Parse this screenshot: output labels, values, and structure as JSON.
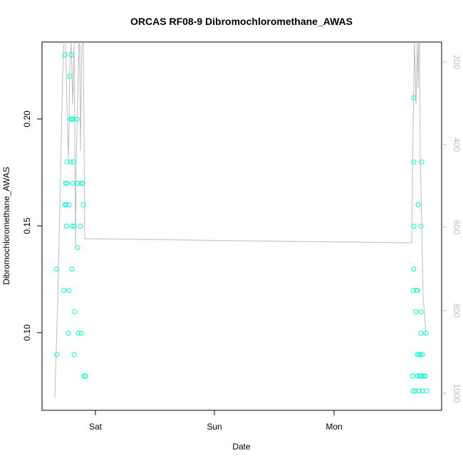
{
  "chart_data": {
    "type": "scatter",
    "title": "ORCAS RF08-9 Dibromochloromethane_AWAS",
    "xlabel": "Date",
    "ylabel": "Dibromochloromethane_AWAS",
    "x_ticks": [
      "Sat",
      "Sun",
      "Mon"
    ],
    "y_ticks": [
      "0.10",
      "0.15",
      "0.20"
    ],
    "ylim": [
      0.064,
      0.236
    ],
    "y2_ticks": [
      "200",
      "400",
      "600",
      "800",
      "1000"
    ],
    "y2lim": [
      1030,
      150
    ],
    "y2_reversed": true,
    "point_color": "#00ffd0",
    "line_color": "#bdbdbd",
    "points": [
      {
        "x": 79,
        "y": 0.13
      },
      {
        "x": 80,
        "y": 0.09
      },
      {
        "x": 91,
        "y": 0.23
      },
      {
        "x": 90,
        "y": 0.12
      },
      {
        "x": 92,
        "y": 0.17
      },
      {
        "x": 94,
        "y": 0.17
      },
      {
        "x": 91,
        "y": 0.16
      },
      {
        "x": 93,
        "y": 0.16
      },
      {
        "x": 93,
        "y": 0.15
      },
      {
        "x": 94,
        "y": 0.18
      },
      {
        "x": 96,
        "y": 0.1
      },
      {
        "x": 97,
        "y": 0.12
      },
      {
        "x": 97,
        "y": 0.16
      },
      {
        "x": 98,
        "y": 0.22
      },
      {
        "x": 99,
        "y": 0.18
      },
      {
        "x": 99,
        "y": 0.2
      },
      {
        "x": 100,
        "y": 0.23
      },
      {
        "x": 101,
        "y": 0.2
      },
      {
        "x": 101,
        "y": 0.15
      },
      {
        "x": 101,
        "y": 0.13
      },
      {
        "x": 102,
        "y": 0.17
      },
      {
        "x": 103,
        "y": 0.2
      },
      {
        "x": 103,
        "y": 0.18
      },
      {
        "x": 104,
        "y": 0.15
      },
      {
        "x": 104,
        "y": 0.09
      },
      {
        "x": 105,
        "y": 0.11
      },
      {
        "x": 108,
        "y": 0.2
      },
      {
        "x": 109,
        "y": 0.17
      },
      {
        "x": 109,
        "y": 0.14
      },
      {
        "x": 110,
        "y": 0.1
      },
      {
        "x": 113,
        "y": 0.15
      },
      {
        "x": 114,
        "y": 0.1
      },
      {
        "x": 114,
        "y": 0.17
      },
      {
        "x": 116,
        "y": 0.17
      },
      {
        "x": 117,
        "y": 0.16
      },
      {
        "x": 118,
        "y": 0.08
      },
      {
        "x": 120,
        "y": 0.08
      },
      {
        "x": 579,
        "y": 0.08
      },
      {
        "x": 580,
        "y": 0.073
      },
      {
        "x": 580,
        "y": 0.12
      },
      {
        "x": 581,
        "y": 0.21
      },
      {
        "x": 581,
        "y": 0.18
      },
      {
        "x": 581,
        "y": 0.15
      },
      {
        "x": 581,
        "y": 0.13
      },
      {
        "x": 583,
        "y": 0.073
      },
      {
        "x": 584,
        "y": 0.11
      },
      {
        "x": 585,
        "y": 0.12
      },
      {
        "x": 586,
        "y": 0.08
      },
      {
        "x": 586,
        "y": 0.09
      },
      {
        "x": 586,
        "y": 0.12
      },
      {
        "x": 587,
        "y": 0.16
      },
      {
        "x": 588,
        "y": 0.073
      },
      {
        "x": 588,
        "y": 0.09
      },
      {
        "x": 589,
        "y": 0.08
      },
      {
        "x": 590,
        "y": 0.09
      },
      {
        "x": 590,
        "y": 0.08
      },
      {
        "x": 591,
        "y": 0.15
      },
      {
        "x": 591,
        "y": 0.11
      },
      {
        "x": 591,
        "y": 0.1
      },
      {
        "x": 592,
        "y": 0.18
      },
      {
        "x": 592,
        "y": 0.08
      },
      {
        "x": 593,
        "y": 0.073
      },
      {
        "x": 593,
        "y": 0.09
      },
      {
        "x": 595,
        "y": 0.08
      },
      {
        "x": 597,
        "y": 0.08
      },
      {
        "x": 598,
        "y": 0.1
      },
      {
        "x": 599,
        "y": 0.073
      }
    ],
    "line_y2": [
      {
        "x": 77,
        "y2": 1000
      },
      {
        "x": 81,
        "y2": 770
      },
      {
        "x": 84,
        "y2": 540
      },
      {
        "x": 86,
        "y2": 380
      },
      {
        "x": 88,
        "y2": 230
      },
      {
        "x": 90,
        "y2": 140
      },
      {
        "x": 92,
        "y2": 150
      },
      {
        "x": 94,
        "y2": 300
      },
      {
        "x": 96,
        "y2": 430
      },
      {
        "x": 97,
        "y2": 350
      },
      {
        "x": 98,
        "y2": 200
      },
      {
        "x": 100,
        "y2": 150
      },
      {
        "x": 102,
        "y2": 300
      },
      {
        "x": 104,
        "y2": 150
      },
      {
        "x": 105,
        "y2": 380
      },
      {
        "x": 106,
        "y2": 640
      },
      {
        "x": 107,
        "y2": 430
      },
      {
        "x": 109,
        "y2": 300
      },
      {
        "x": 111,
        "y2": 150
      },
      {
        "x": 112,
        "y2": 150
      },
      {
        "x": 113,
        "y2": 410
      },
      {
        "x": 114,
        "y2": 280
      },
      {
        "x": 115,
        "y2": 160
      },
      {
        "x": 117,
        "y2": 150
      },
      {
        "x": 119,
        "y2": 620
      },
      {
        "x": 578,
        "y2": 630
      },
      {
        "x": 580,
        "y2": 350
      },
      {
        "x": 582,
        "y2": 150
      },
      {
        "x": 584,
        "y2": 300
      },
      {
        "x": 586,
        "y2": 150
      },
      {
        "x": 587,
        "y2": 260
      },
      {
        "x": 588,
        "y2": 150
      },
      {
        "x": 589,
        "y2": 150
      },
      {
        "x": 590,
        "y2": 420
      },
      {
        "x": 592,
        "y2": 580
      },
      {
        "x": 594,
        "y2": 760
      },
      {
        "x": 596,
        "y2": 800
      },
      {
        "x": 598,
        "y2": 850
      }
    ]
  }
}
